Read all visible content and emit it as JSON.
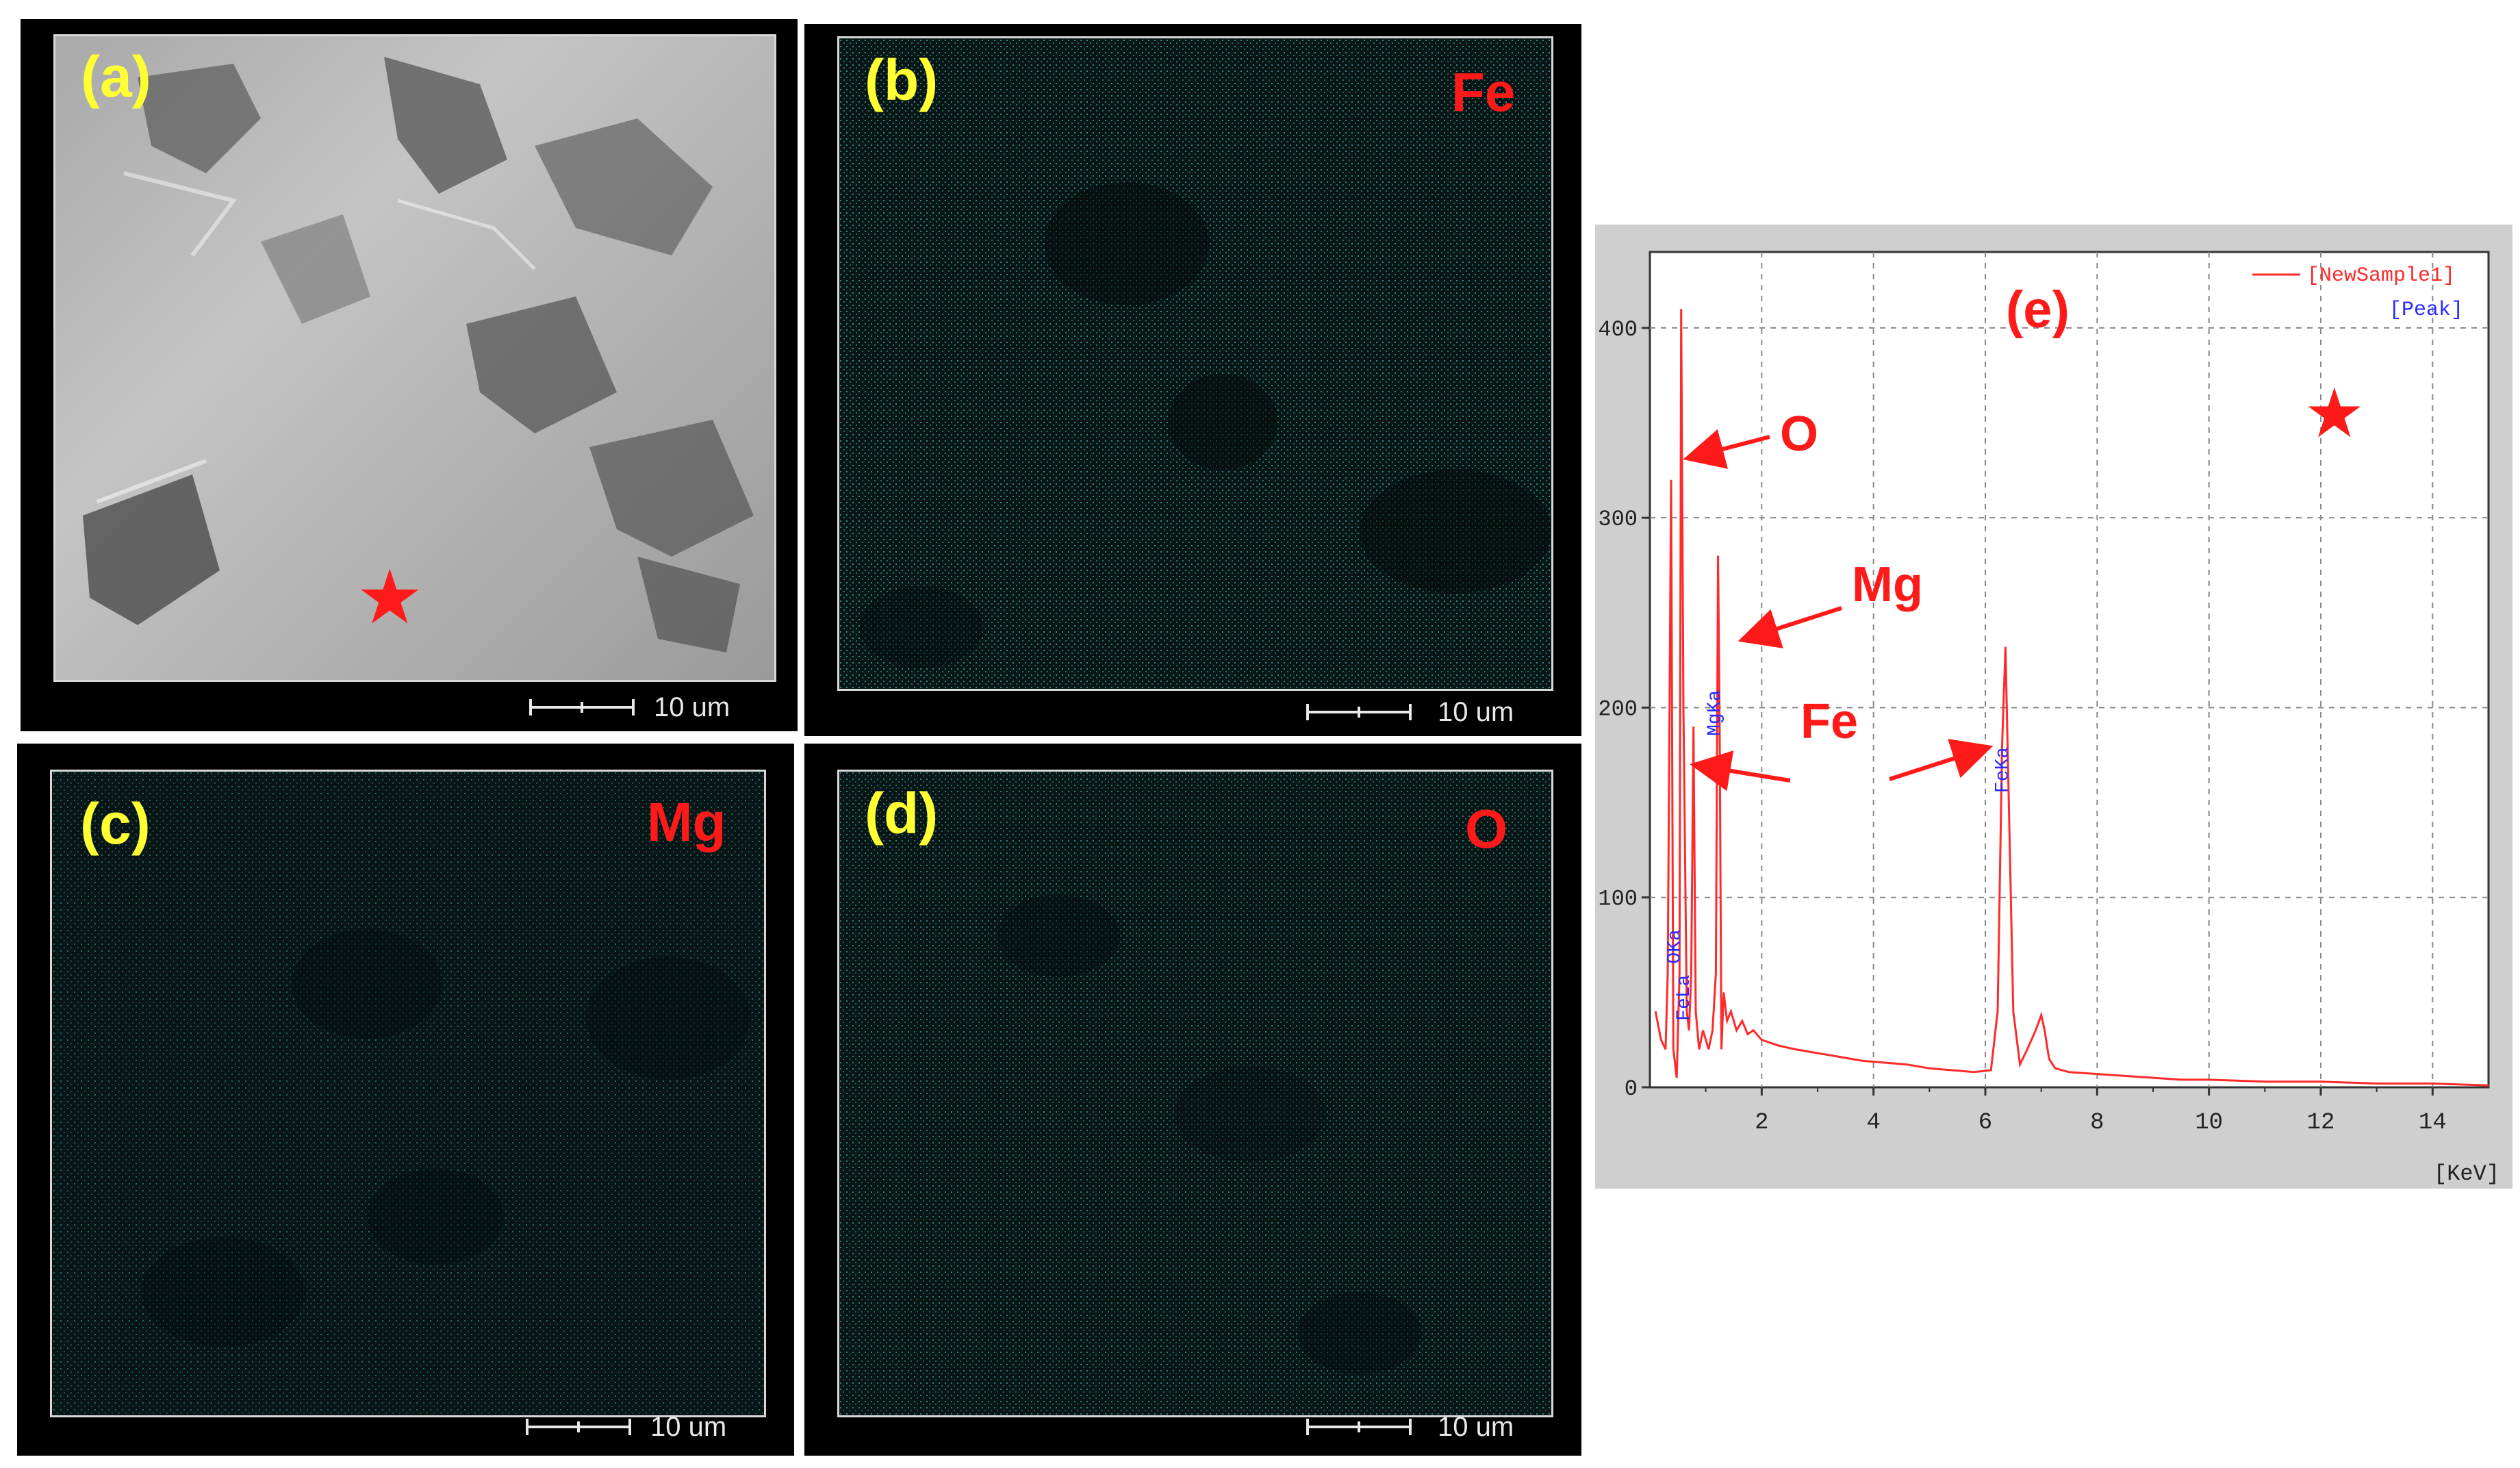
{
  "panels": {
    "a": {
      "label": "(a)",
      "scale": "10 um"
    },
    "b": {
      "label": "(b)",
      "element": "Fe",
      "scale": "10 um"
    },
    "c": {
      "label": "(c)",
      "element": "Mg",
      "scale": "10 um"
    },
    "d": {
      "label": "(d)",
      "element": "O",
      "scale": "10 um"
    },
    "e": {
      "label": "(e)"
    }
  },
  "annotations": {
    "O": "O",
    "Mg": "Mg",
    "Fe": "Fe"
  },
  "colors": {
    "spectrum": "#ff2a2a",
    "peak_label": "#2a2aff",
    "panel_label": "#ffff33",
    "element_label": "#ff1a1a"
  },
  "chart_data": {
    "type": "line",
    "title": "",
    "xlabel": "",
    "ylabel": "",
    "x_unit_label": "[KeV]",
    "xlim": [
      0,
      15
    ],
    "ylim": [
      0,
      440
    ],
    "x_ticks": [
      2,
      4,
      6,
      8,
      10,
      12,
      14
    ],
    "y_ticks": [
      0,
      100,
      200,
      300,
      400
    ],
    "legend": {
      "placement": "top-right",
      "entries": [
        "[NewSample1]",
        "[Peak]"
      ]
    },
    "grid": true,
    "series": [
      {
        "name": "[NewSample1]",
        "x": [
          0.1,
          0.2,
          0.28,
          0.32,
          0.38,
          0.42,
          0.48,
          0.53,
          0.56,
          0.6,
          0.66,
          0.7,
          0.74,
          0.78,
          0.82,
          0.88,
          0.95,
          1.05,
          1.12,
          1.18,
          1.22,
          1.25,
          1.28,
          1.32,
          1.38,
          1.45,
          1.55,
          1.65,
          1.75,
          1.85,
          2.0,
          2.3,
          2.6,
          3.0,
          3.4,
          3.8,
          4.2,
          4.6,
          5.0,
          5.4,
          5.8,
          6.1,
          6.22,
          6.3,
          6.36,
          6.42,
          6.5,
          6.62,
          6.75,
          6.9,
          7.0,
          7.06,
          7.14,
          7.25,
          7.5,
          8.0,
          8.5,
          9.0,
          9.5,
          10.0,
          11.0,
          12.0,
          13.0,
          14.0,
          15.0
        ],
        "y": [
          40,
          25,
          20,
          60,
          320,
          20,
          5,
          60,
          410,
          200,
          40,
          30,
          60,
          190,
          40,
          20,
          30,
          20,
          30,
          60,
          280,
          180,
          20,
          50,
          35,
          40,
          30,
          35,
          28,
          30,
          25,
          22,
          20,
          18,
          16,
          14,
          13,
          12,
          10,
          9,
          8,
          9,
          40,
          180,
          232,
          150,
          40,
          12,
          20,
          30,
          38,
          30,
          15,
          10,
          8,
          7,
          6,
          5,
          4,
          4,
          3,
          3,
          2,
          2,
          1
        ]
      }
    ],
    "peaks": [
      {
        "label": "OKa",
        "x": 0.53
      },
      {
        "label": "FeLa",
        "x": 0.7
      },
      {
        "label": "MgKa",
        "x": 1.25
      },
      {
        "label": "FeKa",
        "x": 6.4
      }
    ]
  }
}
